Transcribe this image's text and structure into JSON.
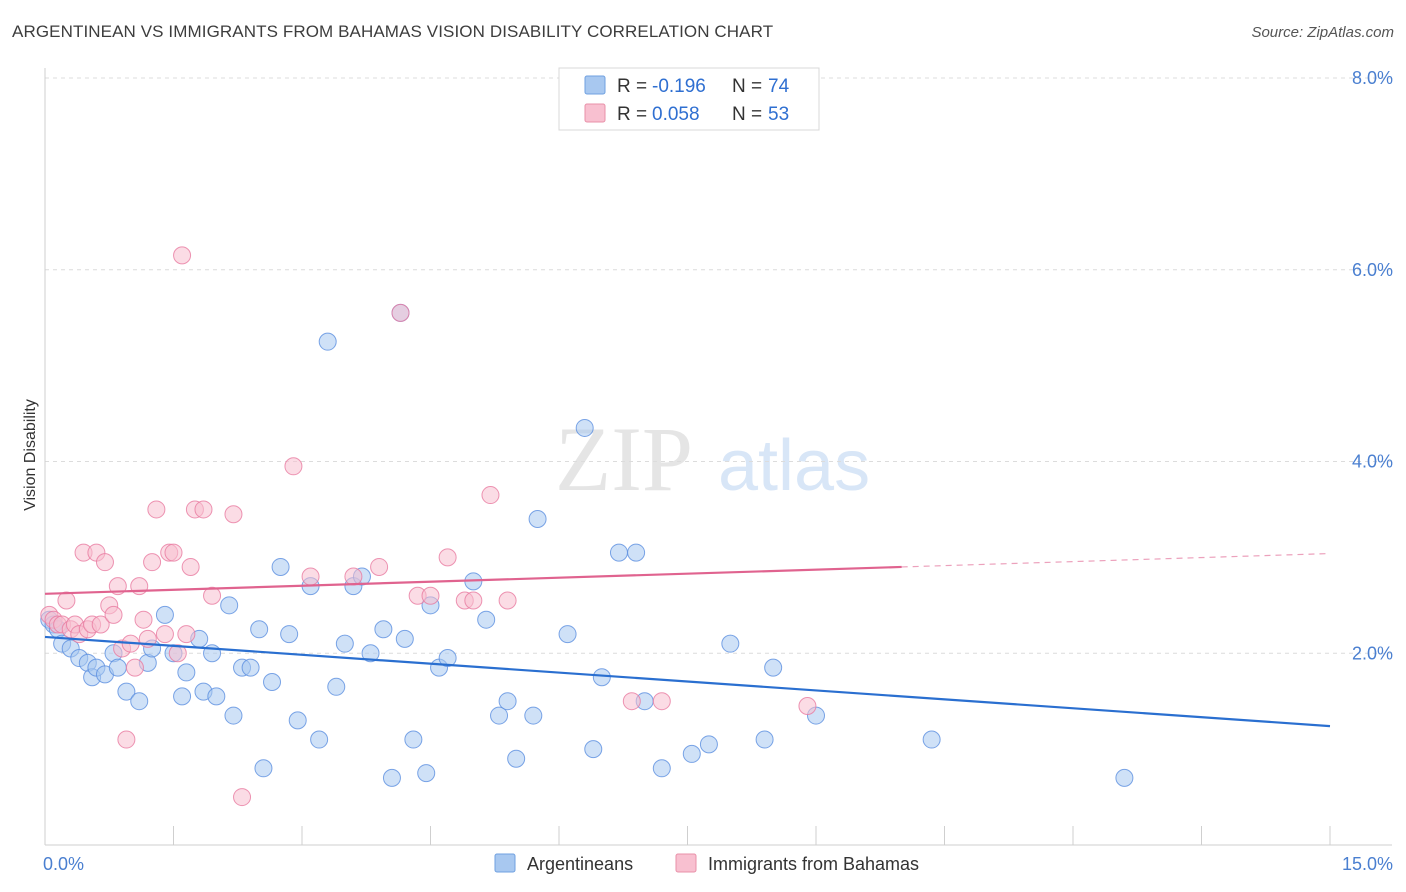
{
  "title": "ARGENTINEAN VS IMMIGRANTS FROM BAHAMAS VISION DISABILITY CORRELATION CHART",
  "source": "Source: ZipAtlas.com",
  "watermark": {
    "zip": "ZIP",
    "atlas": "atlas"
  },
  "legend_top": {
    "rows": [
      {
        "r_label": "R =",
        "r_value": "-0.196",
        "n_label": "N =",
        "n_value": "74",
        "color": "#a8c8f0",
        "stroke": "#6fa0e0"
      },
      {
        "r_label": "R =",
        "r_value": "0.058",
        "n_label": "N =",
        "n_value": "53",
        "color": "#f8c0d0",
        "stroke": "#e890a8"
      }
    ]
  },
  "legend_bottom": [
    {
      "label": "Argentineans",
      "color": "#a8c8f0",
      "stroke": "#6fa0e0"
    },
    {
      "label": "Immigrants from Bahamas",
      "color": "#f8c0d0",
      "stroke": "#e890a8"
    }
  ],
  "chart_data": {
    "type": "scatter",
    "xlabel": "",
    "ylabel": "Vision Disability",
    "xlim": [
      0,
      15
    ],
    "ylim": [
      0,
      8.0
    ],
    "x_tick_labels": [
      "0.0%",
      "15.0%"
    ],
    "y_ticks": [
      2.0,
      4.0,
      6.0,
      8.0
    ],
    "y_tick_labels": [
      "2.0%",
      "4.0%",
      "6.0%",
      "8.0%"
    ],
    "grid": "horizontal dashed",
    "series": [
      {
        "name": "Argentineans",
        "color": "#5b8fe0",
        "fill": "#a8c8f0",
        "trend": {
          "x": [
            0,
            15
          ],
          "y": [
            2.17,
            1.24
          ],
          "color": "#2a6fd0"
        },
        "points": [
          [
            0.05,
            2.35
          ],
          [
            0.1,
            2.3
          ],
          [
            0.15,
            2.25
          ],
          [
            0.2,
            2.1
          ],
          [
            0.3,
            2.05
          ],
          [
            0.4,
            1.95
          ],
          [
            0.5,
            1.9
          ],
          [
            0.55,
            1.75
          ],
          [
            0.6,
            1.85
          ],
          [
            0.7,
            1.78
          ],
          [
            0.8,
            2.0
          ],
          [
            0.85,
            1.85
          ],
          [
            0.95,
            1.6
          ],
          [
            1.1,
            1.5
          ],
          [
            1.2,
            1.9
          ],
          [
            1.25,
            2.05
          ],
          [
            1.4,
            2.4
          ],
          [
            1.5,
            2.0
          ],
          [
            1.6,
            1.55
          ],
          [
            1.65,
            1.8
          ],
          [
            1.8,
            2.15
          ],
          [
            1.85,
            1.6
          ],
          [
            1.95,
            2.0
          ],
          [
            2.0,
            1.55
          ],
          [
            2.15,
            2.5
          ],
          [
            2.2,
            1.35
          ],
          [
            2.3,
            1.85
          ],
          [
            2.4,
            1.85
          ],
          [
            2.5,
            2.25
          ],
          [
            2.55,
            0.8
          ],
          [
            2.65,
            1.7
          ],
          [
            2.75,
            2.9
          ],
          [
            2.85,
            2.2
          ],
          [
            2.95,
            1.3
          ],
          [
            3.1,
            2.7
          ],
          [
            3.2,
            1.1
          ],
          [
            3.3,
            5.25
          ],
          [
            3.4,
            1.65
          ],
          [
            3.5,
            2.1
          ],
          [
            3.6,
            2.7
          ],
          [
            3.7,
            2.8
          ],
          [
            3.8,
            2.0
          ],
          [
            3.95,
            2.25
          ],
          [
            4.05,
            0.7
          ],
          [
            4.15,
            5.55
          ],
          [
            4.2,
            2.15
          ],
          [
            4.3,
            1.1
          ],
          [
            4.45,
            0.75
          ],
          [
            4.5,
            2.5
          ],
          [
            4.6,
            1.85
          ],
          [
            4.7,
            1.95
          ],
          [
            5.0,
            2.75
          ],
          [
            5.15,
            2.35
          ],
          [
            5.3,
            1.35
          ],
          [
            5.4,
            1.5
          ],
          [
            5.5,
            0.9
          ],
          [
            5.7,
            1.35
          ],
          [
            5.75,
            3.4
          ],
          [
            6.1,
            2.2
          ],
          [
            6.3,
            4.35
          ],
          [
            6.4,
            1.0
          ],
          [
            6.5,
            1.75
          ],
          [
            6.7,
            3.05
          ],
          [
            6.9,
            3.05
          ],
          [
            7.0,
            1.5
          ],
          [
            7.2,
            0.8
          ],
          [
            7.55,
            0.95
          ],
          [
            7.75,
            1.05
          ],
          [
            8.0,
            2.1
          ],
          [
            8.4,
            1.1
          ],
          [
            8.5,
            1.85
          ],
          [
            9.0,
            1.35
          ],
          [
            10.35,
            1.1
          ],
          [
            12.6,
            0.7
          ]
        ]
      },
      {
        "name": "Immigrants from Bahamas",
        "color": "#e87aa0",
        "fill": "#f8c0d0",
        "trend": {
          "x": [
            0,
            10
          ],
          "y": [
            2.62,
            2.9
          ],
          "color": "#e0638f",
          "dashed_to": [
            15,
            3.04
          ]
        },
        "points": [
          [
            0.05,
            2.4
          ],
          [
            0.1,
            2.35
          ],
          [
            0.15,
            2.3
          ],
          [
            0.2,
            2.3
          ],
          [
            0.25,
            2.55
          ],
          [
            0.3,
            2.25
          ],
          [
            0.35,
            2.3
          ],
          [
            0.4,
            2.2
          ],
          [
            0.45,
            3.05
          ],
          [
            0.5,
            2.25
          ],
          [
            0.55,
            2.3
          ],
          [
            0.6,
            3.05
          ],
          [
            0.65,
            2.3
          ],
          [
            0.7,
            2.95
          ],
          [
            0.75,
            2.5
          ],
          [
            0.8,
            2.4
          ],
          [
            0.85,
            2.7
          ],
          [
            0.9,
            2.05
          ],
          [
            0.95,
            1.1
          ],
          [
            1.0,
            2.1
          ],
          [
            1.05,
            1.85
          ],
          [
            1.1,
            2.7
          ],
          [
            1.15,
            2.35
          ],
          [
            1.2,
            2.15
          ],
          [
            1.25,
            2.95
          ],
          [
            1.3,
            3.5
          ],
          [
            1.4,
            2.2
          ],
          [
            1.45,
            3.05
          ],
          [
            1.5,
            3.05
          ],
          [
            1.55,
            2.0
          ],
          [
            1.6,
            6.15
          ],
          [
            1.65,
            2.2
          ],
          [
            1.7,
            2.9
          ],
          [
            1.75,
            3.5
          ],
          [
            1.85,
            3.5
          ],
          [
            1.95,
            2.6
          ],
          [
            2.2,
            3.45
          ],
          [
            2.3,
            0.5
          ],
          [
            2.9,
            3.95
          ],
          [
            3.1,
            2.8
          ],
          [
            3.6,
            2.8
          ],
          [
            3.9,
            2.9
          ],
          [
            4.15,
            5.55
          ],
          [
            4.35,
            2.6
          ],
          [
            4.5,
            2.6
          ],
          [
            4.7,
            3.0
          ],
          [
            4.9,
            2.55
          ],
          [
            5.0,
            2.55
          ],
          [
            5.2,
            3.65
          ],
          [
            5.4,
            2.55
          ],
          [
            6.85,
            1.5
          ],
          [
            7.2,
            1.5
          ],
          [
            8.9,
            1.45
          ]
        ]
      }
    ]
  }
}
